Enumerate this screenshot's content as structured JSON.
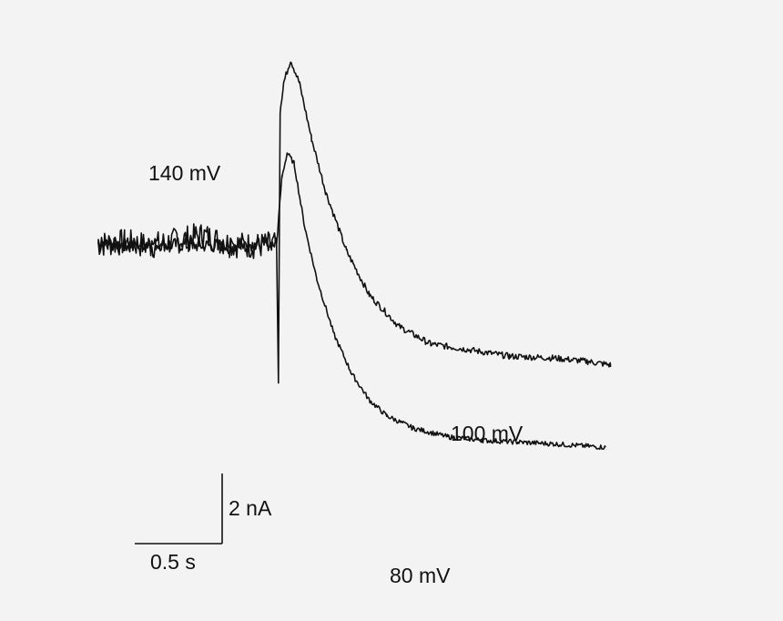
{
  "chart_data": {
    "type": "line",
    "xlabel": "",
    "ylabel": "",
    "series": [
      {
        "name": "140 mV",
        "points": [
          [
            0.0,
            0.0
          ],
          [
            0.15,
            0.05
          ],
          [
            0.3,
            -0.05
          ],
          [
            0.45,
            0.1
          ],
          [
            0.6,
            0.25
          ],
          [
            0.75,
            0.0
          ],
          [
            0.9,
            -0.05
          ],
          [
            1.02,
            0.0
          ]
        ]
      },
      {
        "name": "100 mV",
        "points": [
          [
            0.0,
            0.0
          ],
          [
            0.3,
            0.0
          ],
          [
            0.6,
            -0.05
          ],
          [
            0.9,
            0.0
          ],
          [
            1.02,
            0.0
          ],
          [
            1.03,
            -4.0
          ],
          [
            1.04,
            3.8
          ],
          [
            1.06,
            4.6
          ],
          [
            1.1,
            5.25
          ],
          [
            1.15,
            4.6
          ],
          [
            1.22,
            3.0
          ],
          [
            1.3,
            1.5
          ],
          [
            1.42,
            -0.2
          ],
          [
            1.55,
            -1.45
          ],
          [
            1.72,
            -2.35
          ],
          [
            1.9,
            -2.85
          ],
          [
            2.1,
            -3.0
          ],
          [
            2.35,
            -3.2
          ],
          [
            2.6,
            -3.25
          ],
          [
            2.8,
            -3.35
          ],
          [
            2.93,
            -3.45
          ]
        ]
      },
      {
        "name": "80 mV",
        "points": [
          [
            1.02,
            0.0
          ],
          [
            1.05,
            1.9
          ],
          [
            1.08,
            2.6
          ],
          [
            1.12,
            2.3
          ],
          [
            1.18,
            0.5
          ],
          [
            1.25,
            -1.0
          ],
          [
            1.35,
            -2.6
          ],
          [
            1.45,
            -3.7
          ],
          [
            1.55,
            -4.45
          ],
          [
            1.65,
            -4.9
          ],
          [
            1.8,
            -5.25
          ],
          [
            2.0,
            -5.5
          ],
          [
            2.2,
            -5.6
          ],
          [
            2.4,
            -5.65
          ],
          [
            2.6,
            -5.7
          ],
          [
            2.9,
            -5.8
          ]
        ]
      }
    ],
    "annotations": [
      "140 mV",
      "100 mV",
      "80 mV"
    ],
    "scale_bar": {
      "x_value": 0.5,
      "x_label": "0.5 s",
      "y_value": 2,
      "y_label": "2 nA"
    }
  }
}
